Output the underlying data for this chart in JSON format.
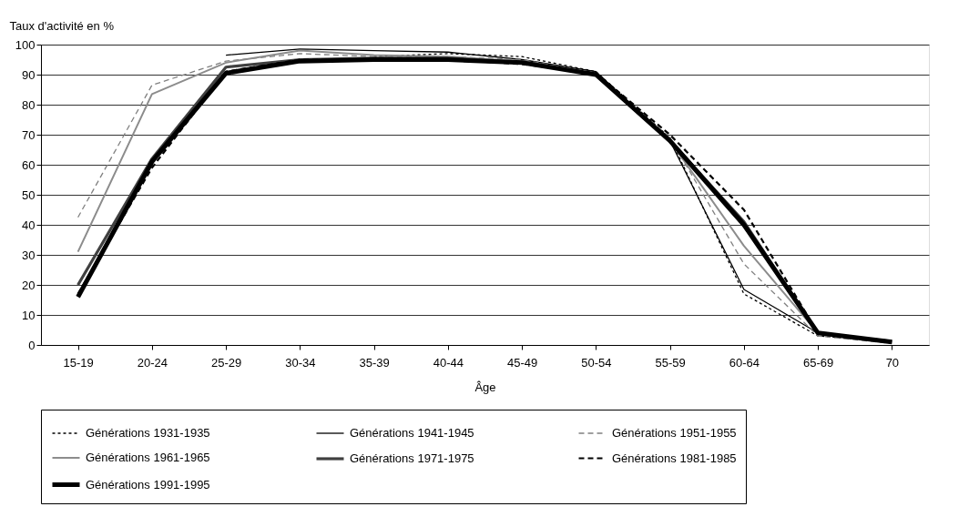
{
  "chart_data": {
    "type": "line",
    "ylabel": "Taux d'activité en %",
    "xlabel": "Âge",
    "categories": [
      "15-19",
      "20-24",
      "25-29",
      "30-34",
      "35-39",
      "40-44",
      "45-49",
      "50-54",
      "55-59",
      "60-64",
      "65-69",
      "70"
    ],
    "ylim": [
      0,
      100
    ],
    "yticks": [
      0,
      10,
      20,
      30,
      40,
      50,
      60,
      70,
      80,
      90,
      100
    ],
    "grid": "y",
    "legend": "bottom",
    "marker": "none",
    "series": [
      {
        "name": "Générations 1931-1935",
        "color": "#000000",
        "line_style": "dotted",
        "values": [
          null,
          null,
          null,
          null,
          96,
          97,
          96,
          91,
          69,
          17,
          3,
          1
        ]
      },
      {
        "name": "Générations 1941-1945",
        "color": "#000000",
        "line_style": "solid",
        "values": [
          null,
          null,
          96.5,
          98.5,
          98,
          97.5,
          95,
          91,
          68,
          18.5,
          4,
          1.5
        ]
      },
      {
        "name": "Générations 1951-1955",
        "color": "#808080",
        "line_style": "dashed",
        "values": [
          42.5,
          86.5,
          94.5,
          97,
          96,
          96,
          95,
          90.5,
          69,
          27,
          3,
          0.5
        ]
      },
      {
        "name": "Générations 1961-1965",
        "color": "#8c8c8c",
        "line_style": "solid",
        "values": [
          31,
          83.5,
          94,
          98,
          96.5,
          96,
          94.5,
          90,
          68,
          33,
          4,
          null
        ]
      },
      {
        "name": "Générations 1971-1975",
        "color": "#404040",
        "line_style": "solid",
        "values": [
          20,
          62,
          92.5,
          95,
          95.5,
          95.5,
          94,
          90,
          68,
          41,
          4,
          null
        ]
      },
      {
        "name": "Générations 1981-1985",
        "color": "#000000",
        "line_style": "dashed",
        "values": [
          17,
          59,
          91,
          95,
          95,
          95,
          93.5,
          90.5,
          70,
          45,
          4,
          1
        ]
      },
      {
        "name": "Générations 1991-1995",
        "color": "#000000",
        "line_style": "solid",
        "values": [
          16,
          61,
          90.5,
          94.5,
          95,
          95,
          94,
          90,
          68,
          40,
          4,
          1
        ]
      }
    ]
  }
}
